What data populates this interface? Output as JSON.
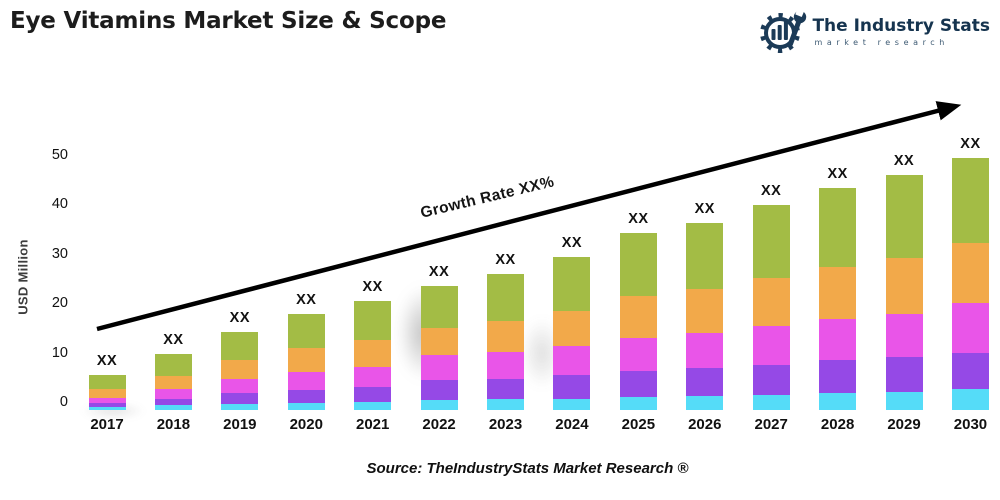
{
  "header": {
    "title": "Eye Vitamins Market Size & Scope",
    "logo": {
      "name": "The Industry Stats",
      "tagline": "market research",
      "brand_color": "#1b3a57"
    }
  },
  "chart_data": {
    "type": "bar",
    "stacked": true,
    "title": "Eye Vitamins Market Size & Scope",
    "xlabel": "",
    "ylabel": "USD Million",
    "ylim": [
      0,
      50
    ],
    "yticks": [
      0,
      10,
      20,
      30,
      40,
      50
    ],
    "grid": false,
    "legend_position": "none",
    "bar_value_label": "XX",
    "categories": [
      "2017",
      "2018",
      "2019",
      "2020",
      "2021",
      "2022",
      "2023",
      "2024",
      "2025",
      "2026",
      "2027",
      "2028",
      "2029",
      "2030"
    ],
    "series": [
      {
        "name": "segment-1-cyan",
        "color": "#55DCF8",
        "values": [
          0.6,
          0.9,
          1.2,
          1.4,
          1.6,
          2.0,
          2.1,
          2.2,
          2.6,
          2.8,
          3.0,
          3.3,
          3.5,
          4.2
        ]
      },
      {
        "name": "segment-2-purple",
        "color": "#9549E6",
        "values": [
          0.7,
          1.3,
          2.1,
          2.6,
          3.0,
          3.9,
          4.1,
          4.7,
          5.2,
          5.5,
          6.0,
          6.5,
          6.9,
          7.0
        ]
      },
      {
        "name": "segment-3-magenta",
        "color": "#E955E8",
        "values": [
          1.1,
          1.9,
          2.9,
          3.5,
          4.0,
          4.9,
          5.2,
          5.7,
          6.5,
          6.9,
          7.6,
          8.2,
          8.7,
          9.9
        ]
      },
      {
        "name": "segment-4-orange",
        "color": "#F2A94A",
        "values": [
          1.7,
          2.6,
          3.7,
          4.7,
          5.2,
          5.5,
          6.2,
          7.1,
          8.2,
          8.7,
          9.6,
          10.4,
          11.0,
          11.9
        ]
      },
      {
        "name": "segment-5-green",
        "color": "#A3BC45",
        "values": [
          2.9,
          4.3,
          5.6,
          6.8,
          7.7,
          8.2,
          9.4,
          10.6,
          12.5,
          13.1,
          14.3,
          15.6,
          16.4,
          17.0
        ]
      }
    ],
    "totals_estimated": [
      7.0,
      11.0,
      15.5,
      19.0,
      21.5,
      24.5,
      27.0,
      30.3,
      35.0,
      37.0,
      40.5,
      44.0,
      46.5,
      50.0
    ],
    "annotation": {
      "growth_label": "Growth Rate XX%",
      "arrow_color": "#000000"
    }
  },
  "footer": {
    "source": "Source: TheIndustryStats Market Research ®"
  }
}
